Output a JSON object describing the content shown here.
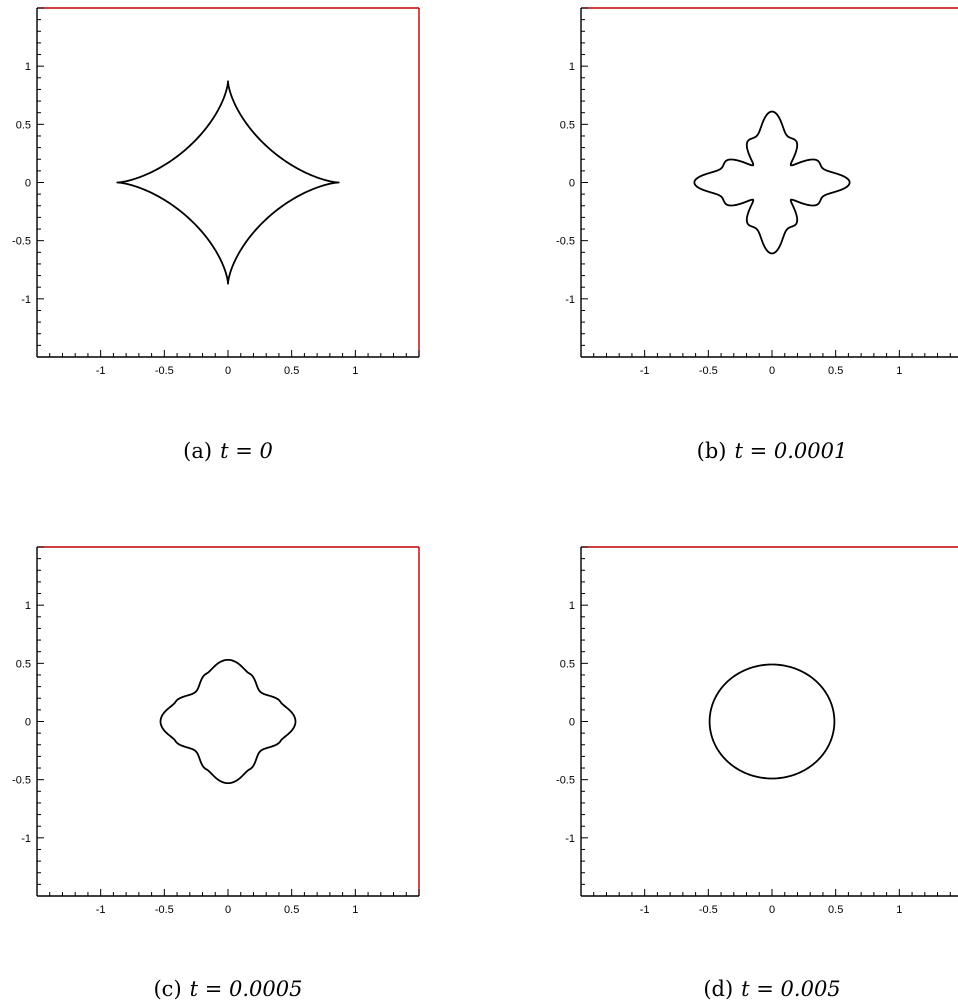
{
  "chart_data": [
    {
      "type": "line",
      "panel": "a",
      "caption": {
        "label": "(a)",
        "math": "t = 0"
      },
      "xlim": [
        -1.5,
        1.5
      ],
      "ylim": [
        -1.5,
        1.5
      ],
      "xticks": [
        "-1",
        "-0.5",
        "0",
        "0.5",
        "1"
      ],
      "yticks": [
        "1",
        "0.5",
        "0",
        "-0.5",
        "-1"
      ],
      "series": [
        {
          "shape": "astroid",
          "values": {
            "a": 0.87,
            "p": 3
          }
        }
      ]
    },
    {
      "type": "line",
      "panel": "b",
      "caption": {
        "label": "(b)",
        "math": "t = 0.0001"
      },
      "xlim": [
        -1.5,
        1.5
      ],
      "ylim": [
        -1.5,
        1.5
      ],
      "xticks": [
        "-1",
        "-0.5",
        "0",
        "0.5",
        "1"
      ],
      "yticks": [
        "1",
        "0.5",
        "0",
        "-0.5",
        "-1"
      ],
      "series": [
        {
          "shape": "rounded-four-point-star",
          "values": {
            "r0": 0.41,
            "amp": 0.2,
            "sharp": 3.5
          }
        }
      ]
    },
    {
      "type": "line",
      "panel": "c",
      "caption": {
        "label": "(c)",
        "math": "t = 0.0005"
      },
      "xlim": [
        -1.5,
        1.5
      ],
      "ylim": [
        -1.5,
        1.5
      ],
      "xticks": [
        "-1",
        "-0.5",
        "0",
        "0.5",
        "1"
      ],
      "yticks": [
        "1",
        "0.5",
        "0",
        "-0.5",
        "-1"
      ],
      "series": [
        {
          "shape": "four-lobed",
          "values": {
            "r0": 0.445,
            "amp": 0.085,
            "sharp": 1.6
          }
        }
      ]
    },
    {
      "type": "line",
      "panel": "d",
      "caption": {
        "label": "(d)",
        "math": "t = 0.005"
      },
      "xlim": [
        -1.5,
        1.5
      ],
      "ylim": [
        -1.5,
        1.5
      ],
      "xticks": [
        "-1",
        "-0.5",
        "0",
        "0.5",
        "1"
      ],
      "yticks": [
        "1",
        "0.5",
        "0",
        "-0.5",
        "-1"
      ],
      "series": [
        {
          "shape": "ellipse",
          "values": {
            "rx": 0.49,
            "ry": 0.49
          }
        }
      ]
    }
  ],
  "colors": {
    "frame": "#c00000",
    "axis": "#000000",
    "curve": "#000000"
  }
}
